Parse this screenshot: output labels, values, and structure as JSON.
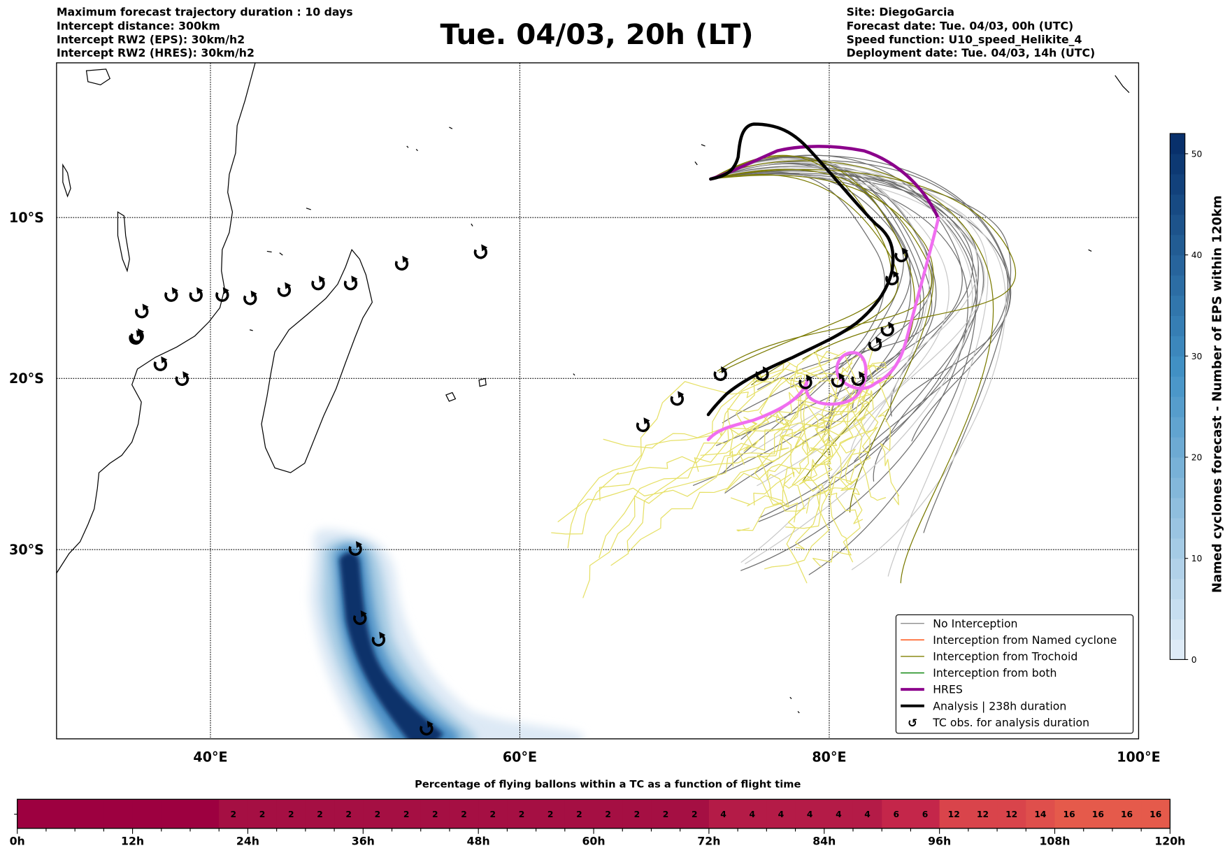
{
  "header": {
    "left": [
      "Maximum forecast trajectory duration : 10 days",
      "Intercept distance: 300km",
      "Intercept RW2 (EPS):  30km/h2",
      "Intercept RW2 (HRES): 30km/h2"
    ],
    "title": "Tue. 04/03, 20h (LT)",
    "right": [
      "Site: DiegoGarcia",
      "Forecast date: Tue. 04/03, 00h (UTC)",
      "Speed function: U10_speed_Helikite_4",
      "Deployment date: Tue. 04/03, 14h (UTC)"
    ]
  },
  "map": {
    "lon_range": [
      30,
      100
    ],
    "lat_range": [
      -40.5,
      -0.5
    ],
    "lon_ticks": [
      {
        "v": 40,
        "label": "40°E"
      },
      {
        "v": 60,
        "label": "60°E"
      },
      {
        "v": 80,
        "label": "80°E"
      },
      {
        "v": 100,
        "label": "100°E"
      }
    ],
    "lat_ticks": [
      {
        "v": -10,
        "label": "10°S"
      },
      {
        "v": -20,
        "label": "20°S"
      },
      {
        "v": -30,
        "label": "30°S"
      }
    ],
    "tc_obs": [
      [
        35.5,
        -15.7
      ],
      [
        37.4,
        -14.7
      ],
      [
        39.0,
        -14.7
      ],
      [
        40.7,
        -14.7
      ],
      [
        42.5,
        -14.9
      ],
      [
        44.7,
        -14.4
      ],
      [
        46.9,
        -14.0
      ],
      [
        49.0,
        -14.0
      ],
      [
        52.3,
        -12.8
      ],
      [
        57.4,
        -12.1
      ],
      [
        35.2,
        -17.2
      ],
      [
        35.1,
        -17.3
      ],
      [
        36.7,
        -18.9
      ],
      [
        38.1,
        -19.8
      ],
      [
        49.3,
        -30.1
      ],
      [
        49.6,
        -34.3
      ],
      [
        50.8,
        -35.6
      ],
      [
        53.9,
        -41.0
      ],
      [
        67.9,
        -22.6
      ],
      [
        70.1,
        -21.0
      ],
      [
        72.9,
        -19.5
      ],
      [
        75.6,
        -19.5
      ],
      [
        78.4,
        -20.0
      ],
      [
        80.5,
        -19.9
      ],
      [
        81.8,
        -19.8
      ],
      [
        82.9,
        -17.7
      ],
      [
        83.7,
        -16.8
      ],
      [
        84.0,
        -13.7
      ],
      [
        84.6,
        -12.3
      ]
    ],
    "tc_marker": "↺"
  },
  "legend": {
    "items": [
      {
        "label": "No Interception",
        "color": "#808080",
        "kind": "thin"
      },
      {
        "label": "Interception from Named cyclone",
        "color": "#ff4500",
        "kind": "thin"
      },
      {
        "label": "Interception from Trochoid",
        "color": "#808000",
        "kind": "thin"
      },
      {
        "label": "Interception from both",
        "color": "#008000",
        "kind": "thin"
      },
      {
        "label": "HRES",
        "color": "#8b008b",
        "kind": "thick"
      },
      {
        "label": "Analysis | 238h duration",
        "color": "#000000",
        "kind": "thick"
      },
      {
        "label": "TC obs. for analysis duration",
        "color": "#000000",
        "kind": "marker"
      }
    ]
  },
  "colorbar": {
    "label": "Named cyclones forecast - Number of EPS within 120km",
    "min": 0,
    "max": 52,
    "ticks": [
      "0",
      "10",
      "20",
      "30",
      "40",
      "50"
    ]
  },
  "timeline": {
    "title": "Percentage of flying ballons within a TC as a function of flight time",
    "step_hours": 3,
    "values": [
      0,
      0,
      0,
      0,
      0,
      0,
      0,
      2,
      2,
      2,
      2,
      2,
      2,
      2,
      2,
      2,
      2,
      2,
      2,
      2,
      2,
      2,
      2,
      2,
      4,
      4,
      4,
      4,
      4,
      4,
      6,
      6,
      12,
      12,
      12,
      14,
      16,
      16,
      16,
      16
    ],
    "tick_labels": [
      "0h",
      "12h",
      "24h",
      "36h",
      "48h",
      "60h",
      "72h",
      "84h",
      "96h",
      "108h",
      "120h"
    ],
    "colors": {
      "0": "#9d0040",
      "2": "#a50f43",
      "4": "#b41b47",
      "6": "#c4264a",
      "12": "#d9444b",
      "14": "#df4f4c",
      "16": "#e55a4b"
    }
  }
}
